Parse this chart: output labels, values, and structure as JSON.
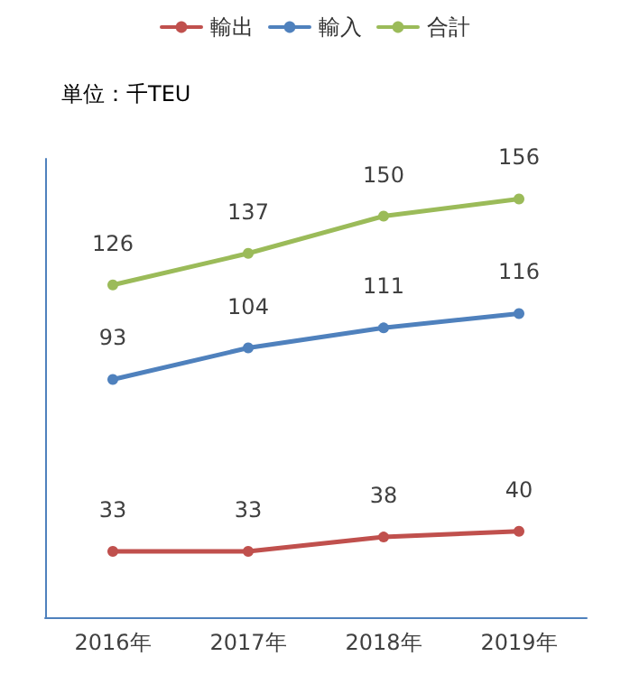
{
  "chart_data": {
    "type": "line",
    "annotations": [
      "単位：千TEU"
    ],
    "categories": [
      "2016年",
      "2017年",
      "2018年",
      "2019年"
    ],
    "series": [
      {
        "name": "輸出",
        "color": "#c0504d",
        "values": [
          33,
          33,
          38,
          40
        ]
      },
      {
        "name": "輸入",
        "color": "#4f81bd",
        "values": [
          93,
          104,
          111,
          116
        ]
      },
      {
        "name": "合計",
        "color": "#9bbb59",
        "values": [
          126,
          137,
          150,
          156
        ]
      }
    ],
    "ylim": [
      10,
      170
    ],
    "tick_labels": "x",
    "data_labels": true,
    "legend": "top",
    "grid": false,
    "marker": "circle",
    "line_style": "solid"
  }
}
